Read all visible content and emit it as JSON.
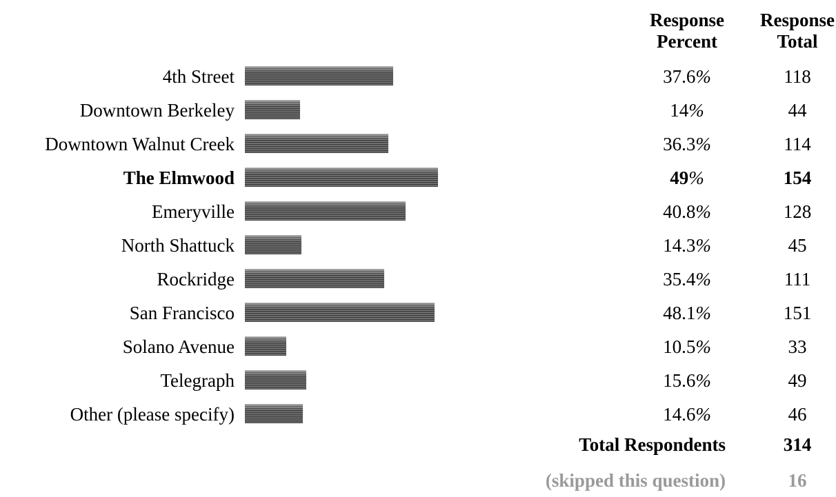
{
  "header": {
    "percent_line1": "Response",
    "percent_line2": "Percent",
    "total_line1": "Response",
    "total_line2": "Total"
  },
  "chart_data": {
    "type": "bar",
    "orientation": "horizontal",
    "unit_symbol": "%",
    "categories": [
      "4th Street",
      "Downtown Berkeley",
      "Downtown Walnut Creek",
      "The Elmwood",
      "Emeryville",
      "North Shattuck",
      "Rockridge",
      "San Francisco",
      "Solano Avenue",
      "Telegraph",
      "Other (please specify)"
    ],
    "values": [
      37.6,
      14,
      36.3,
      49,
      40.8,
      14.3,
      35.4,
      48.1,
      10.5,
      15.6,
      14.6
    ],
    "totals": [
      118,
      44,
      114,
      154,
      128,
      45,
      111,
      151,
      33,
      49,
      46
    ],
    "highlighted_category": "The Elmwood",
    "bar_color": "#5a5a5a"
  },
  "summary": {
    "total_label": "Total Respondents",
    "total_value": "314",
    "skipped_label": "(skipped this question)",
    "skipped_value": "16"
  }
}
